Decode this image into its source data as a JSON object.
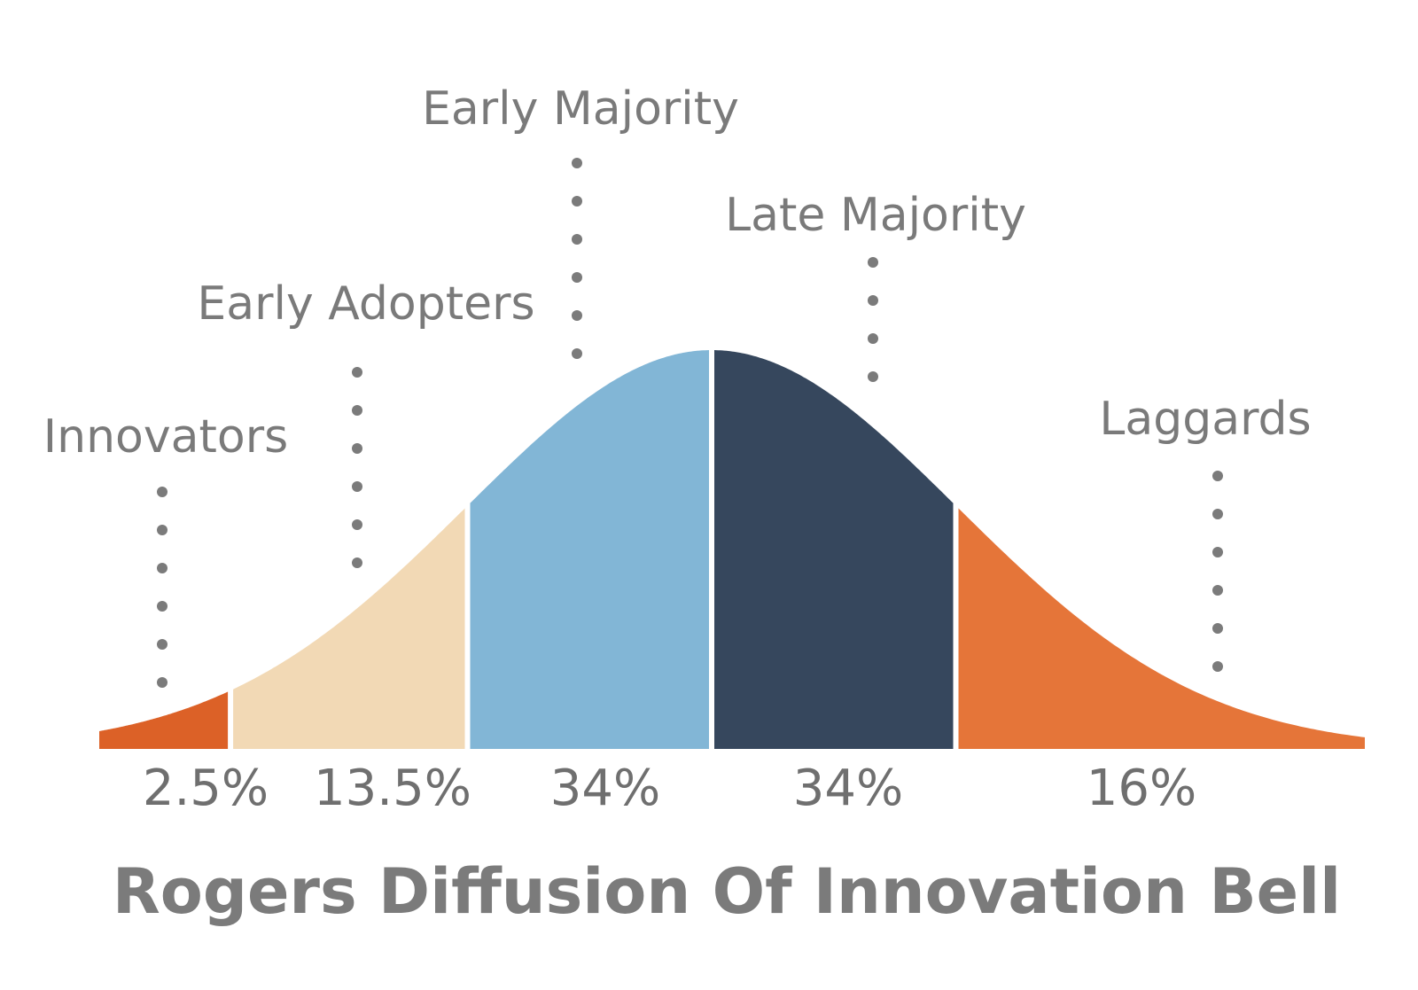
{
  "chart_data": {
    "type": "area",
    "title": "Rogers Diffusion Of Innovation Bell",
    "segments": [
      {
        "label": "Innovators",
        "percent_label": "2.5%",
        "value": 2.5,
        "color": "#dc6127"
      },
      {
        "label": "Early Adopters",
        "percent_label": "13.5%",
        "value": 13.5,
        "color": "#f2d9b5"
      },
      {
        "label": "Early Majority",
        "percent_label": "34%",
        "value": 34,
        "color": "#82b6d6"
      },
      {
        "label": "Late Majority",
        "percent_label": "34%",
        "value": 34,
        "color": "#36475d"
      },
      {
        "label": "Laggards",
        "percent_label": "16%",
        "value": 16,
        "color": "#e57539"
      }
    ],
    "legend": "none",
    "grid": false
  }
}
